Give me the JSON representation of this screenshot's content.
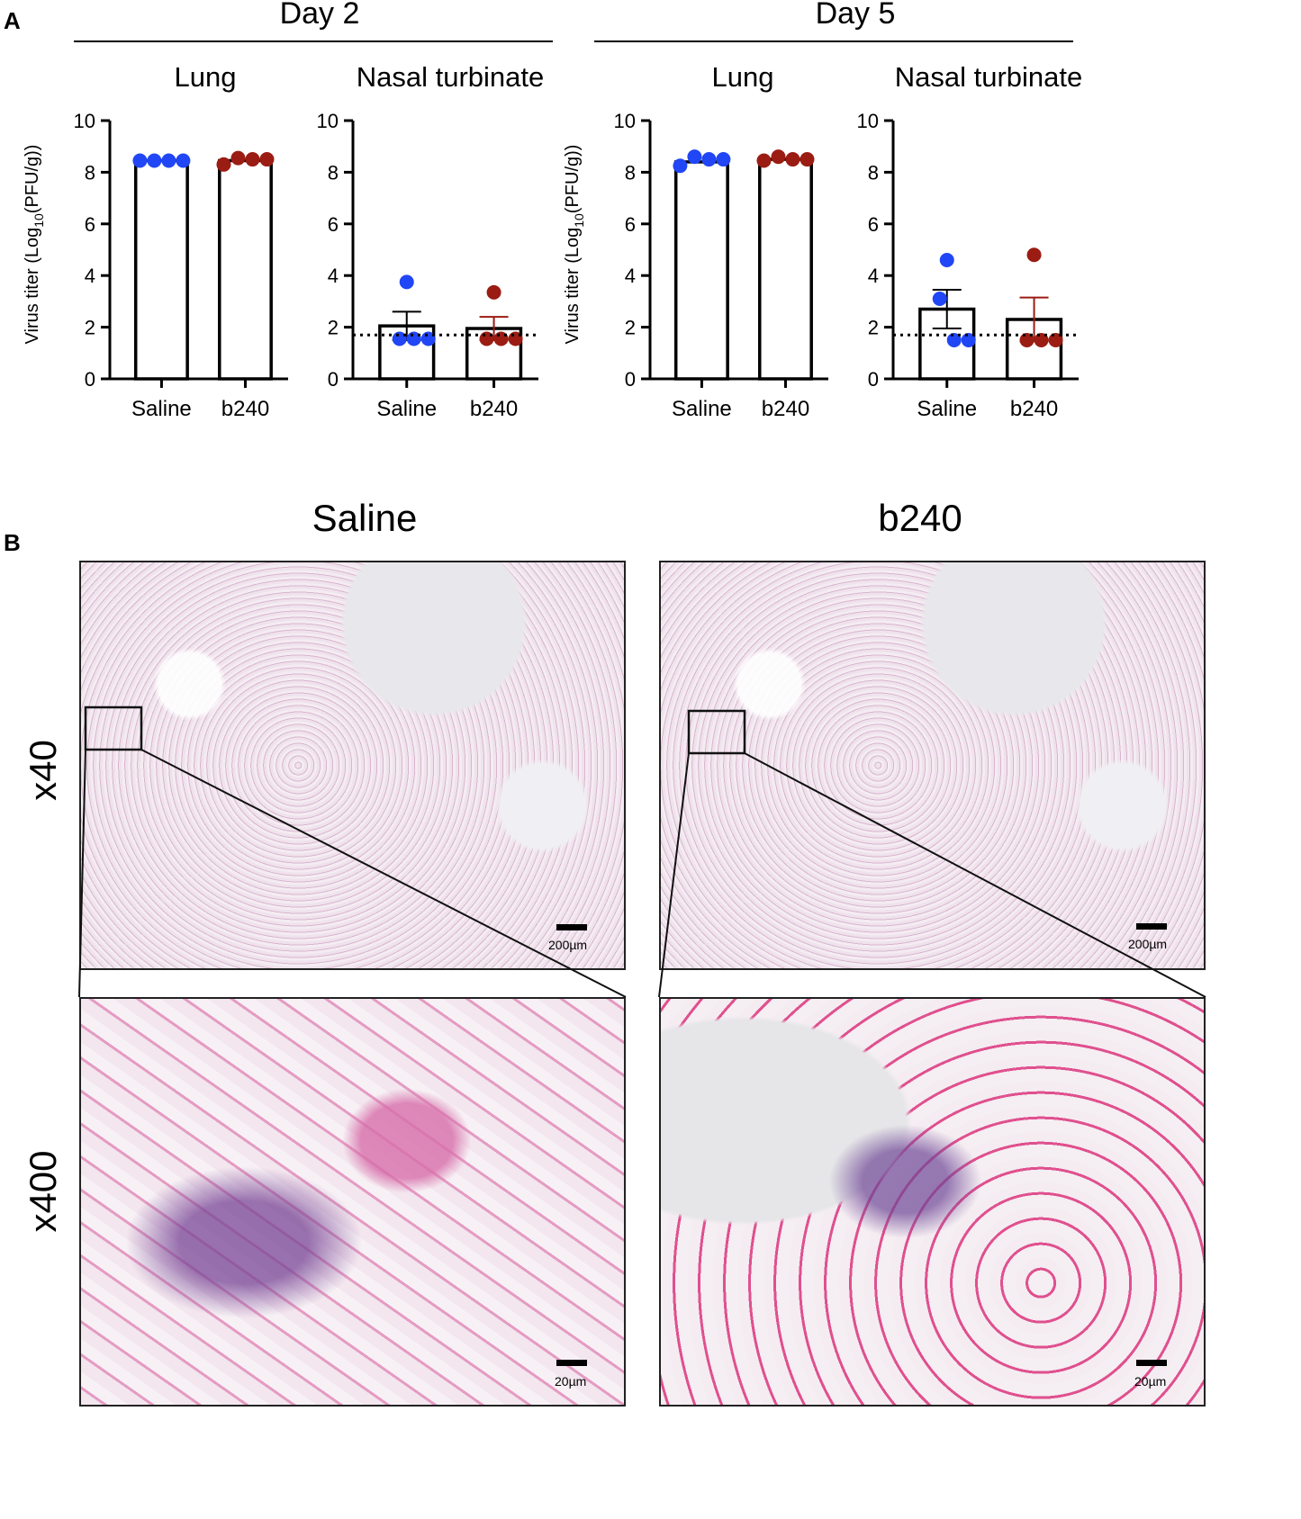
{
  "panel_a_label": "A",
  "panel_b_label": "B",
  "day2_title": "Day 2",
  "day5_title": "Day 5",
  "histology": {
    "col_left": "Saline",
    "col_right": "b240",
    "row_top": "x40",
    "row_bottom": "x400",
    "scale_top": "200µm",
    "scale_bottom": "20µm"
  },
  "colors": {
    "saline": "#2146f5",
    "b240": "#9b1c13"
  },
  "chart_data": [
    {
      "type": "bar",
      "title": "Lung",
      "group": "Day 2",
      "ylabel_main": "Virus titer (Log",
      "ylabel_sub": "10",
      "ylabel_end": "(PFU/g))",
      "categories": [
        "Saline",
        "b240"
      ],
      "values": [
        8.45,
        8.45
      ],
      "errors": [
        0.03,
        0.05
      ],
      "points": [
        [
          8.45,
          8.45,
          8.45,
          8.45
        ],
        [
          8.3,
          8.55,
          8.5,
          8.5
        ]
      ],
      "ylim": [
        0,
        10
      ],
      "yticks": [
        "0",
        "2",
        "4",
        "6",
        "8",
        "10"
      ],
      "detection_limit": null
    },
    {
      "type": "bar",
      "title": "Nasal turbinate",
      "group": "Day 2",
      "ylabel_main": "",
      "ylabel_sub": "",
      "ylabel_end": "",
      "categories": [
        "Saline",
        "b240"
      ],
      "values": [
        2.05,
        1.95
      ],
      "errors": [
        0.55,
        0.45
      ],
      "points": [
        [
          3.75,
          1.55,
          1.55,
          1.55
        ],
        [
          3.35,
          1.55,
          1.55,
          1.55
        ]
      ],
      "ylim": [
        0,
        10
      ],
      "yticks": [
        "0",
        "2",
        "4",
        "6",
        "8",
        "10"
      ],
      "detection_limit": 1.7
    },
    {
      "type": "bar",
      "title": "Lung",
      "group": "Day 5",
      "ylabel_main": "Virus titer (Log",
      "ylabel_sub": "10",
      "ylabel_end": "(PFU/g))",
      "categories": [
        "Saline",
        "b240"
      ],
      "values": [
        8.4,
        8.5
      ],
      "errors": [
        0.05,
        0.03
      ],
      "points": [
        [
          8.25,
          8.6,
          8.5,
          8.5
        ],
        [
          8.45,
          8.6,
          8.5,
          8.5
        ]
      ],
      "ylim": [
        0,
        10
      ],
      "yticks": [
        "0",
        "2",
        "4",
        "6",
        "8",
        "10"
      ],
      "detection_limit": null
    },
    {
      "type": "bar",
      "title": "Nasal turbinate",
      "group": "Day 5",
      "ylabel_main": "",
      "ylabel_sub": "",
      "ylabel_end": "",
      "categories": [
        "Saline",
        "b240"
      ],
      "values": [
        2.7,
        2.3
      ],
      "errors": [
        0.75,
        0.85
      ],
      "points": [
        [
          4.6,
          3.1,
          1.5,
          1.5
        ],
        [
          4.8,
          1.5,
          1.5,
          1.5
        ]
      ],
      "ylim": [
        0,
        10
      ],
      "yticks": [
        "0",
        "2",
        "4",
        "6",
        "8",
        "10"
      ],
      "detection_limit": 1.7
    }
  ]
}
